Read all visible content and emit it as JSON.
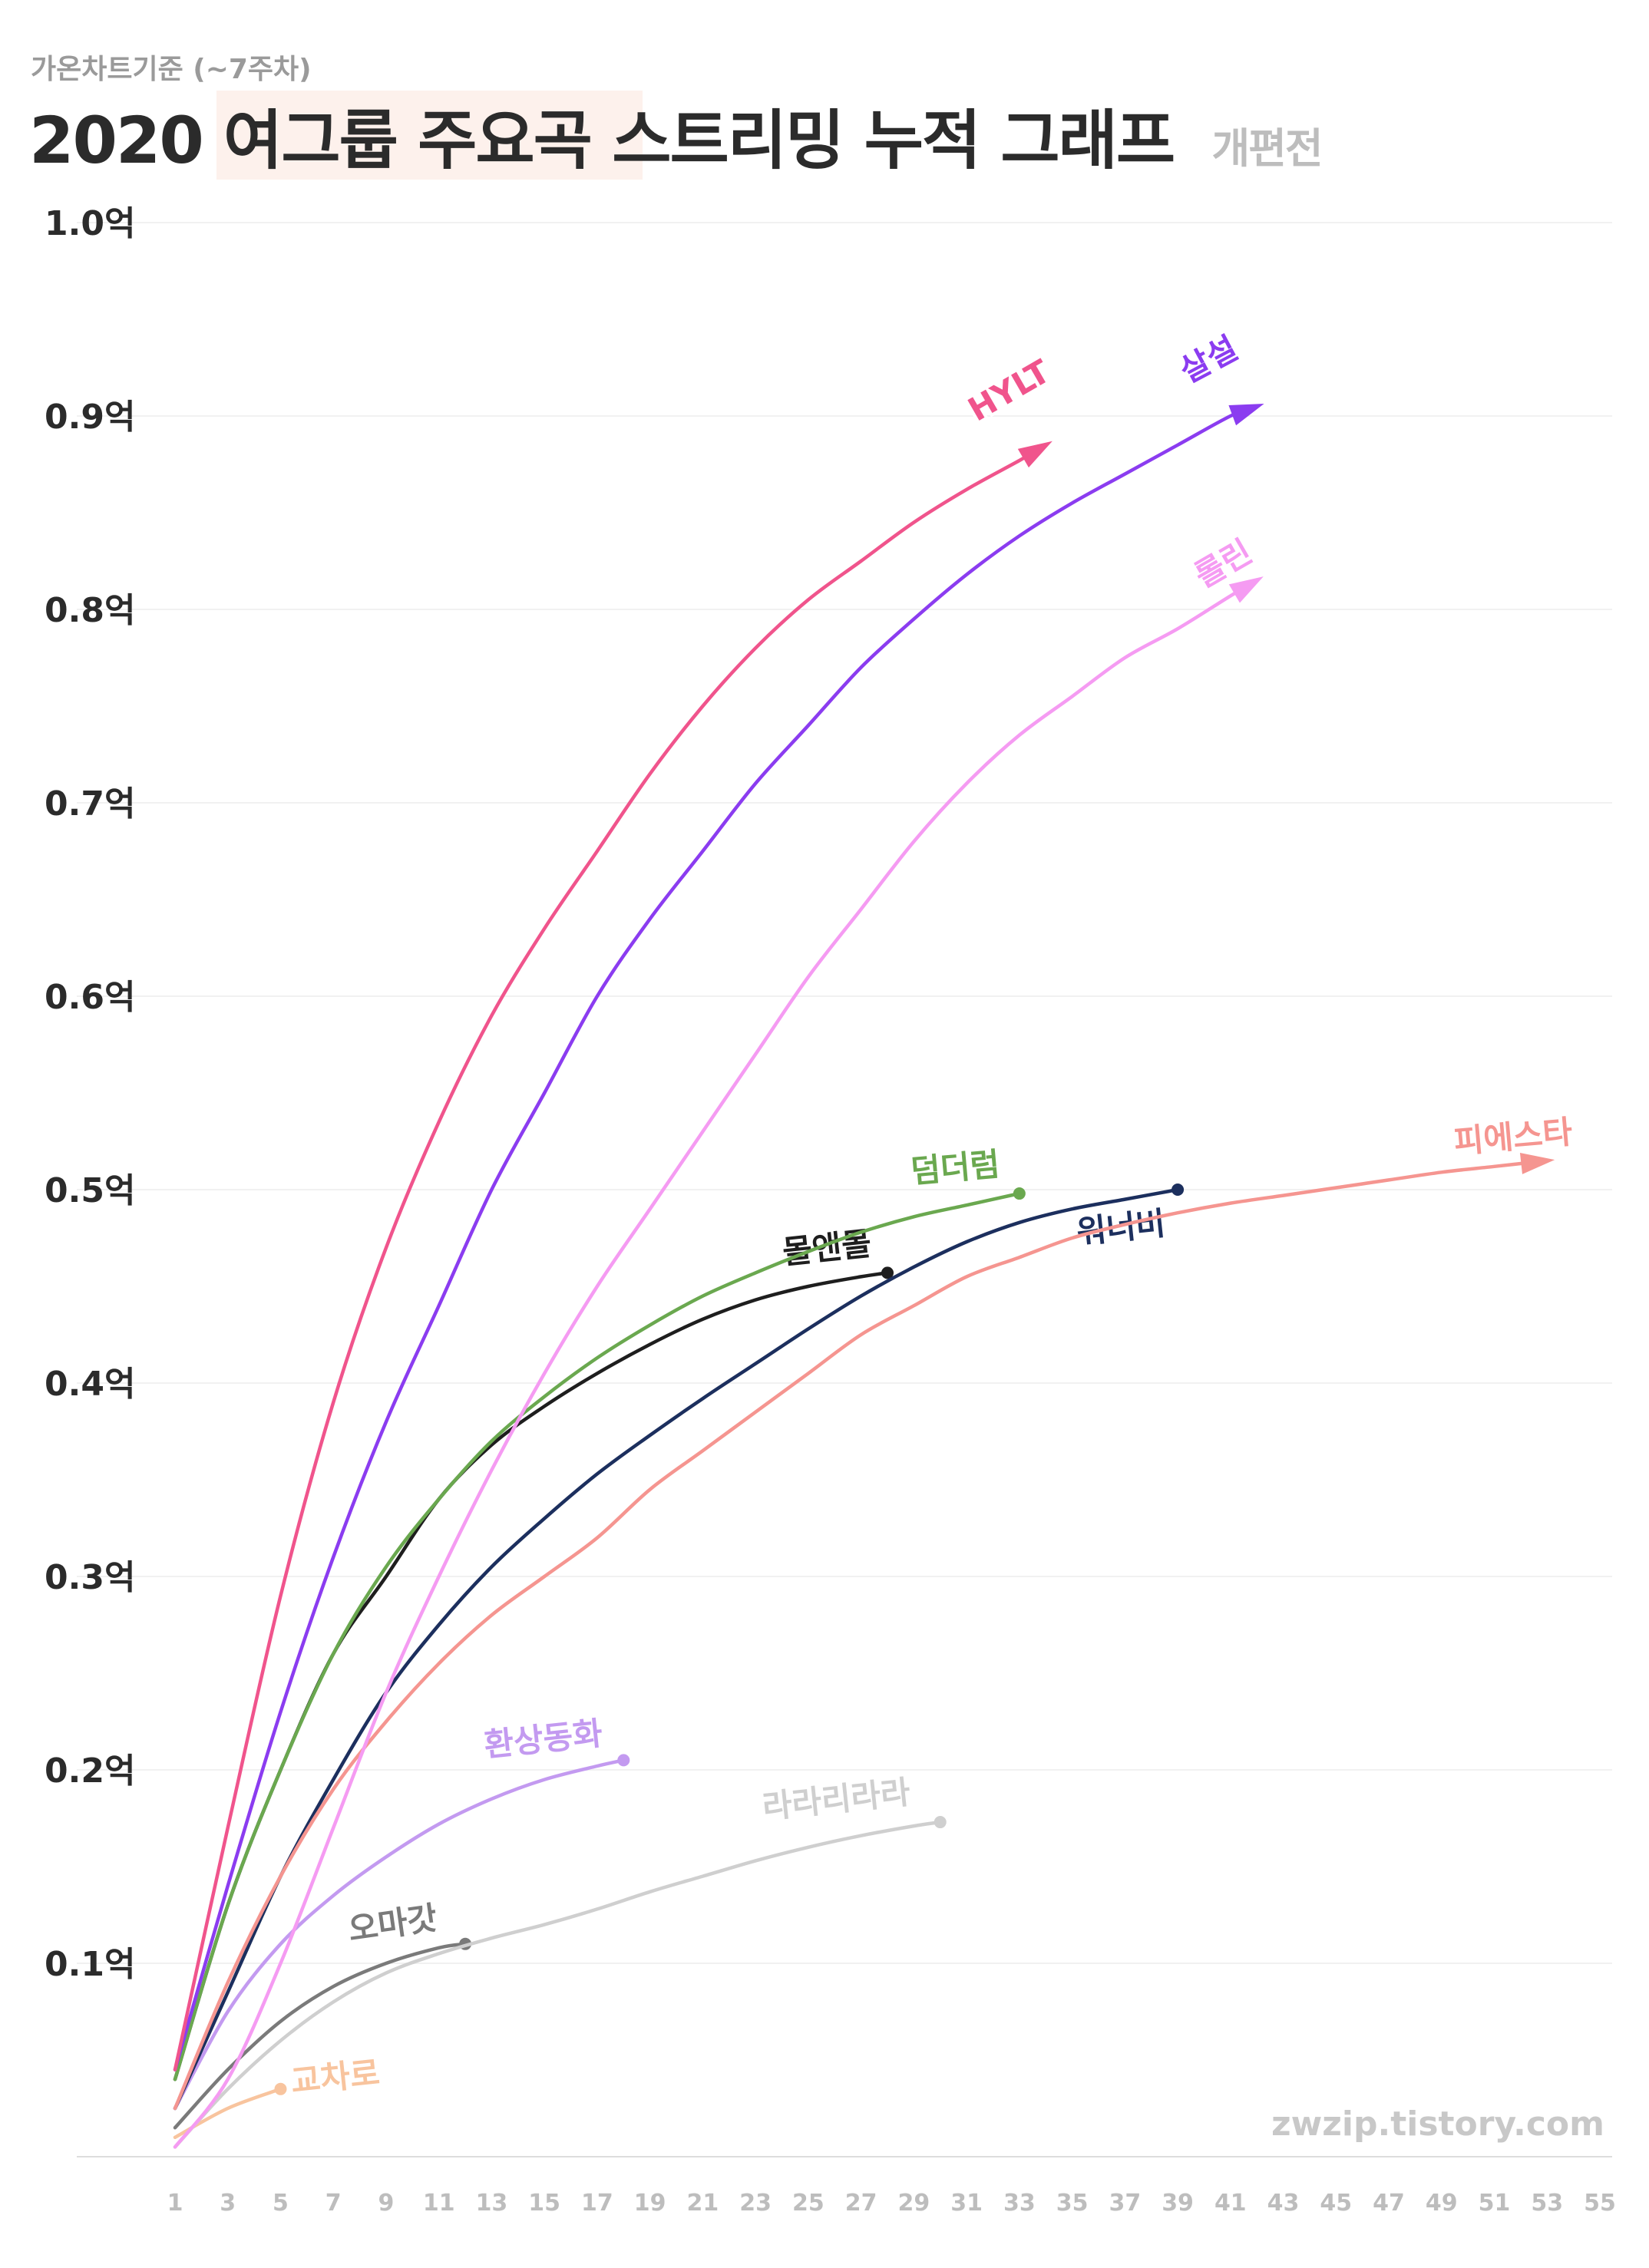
{
  "header": {
    "subtitle": "가온차트기준 (~7주차)",
    "title": "2020 여그룹 주요곡 스트리밍 누적 그래프",
    "title_note": "개편전",
    "highlight_color": "#fdf1ec"
  },
  "watermark": "zwzip.tistory.com",
  "chart_data": {
    "type": "line",
    "title": "2020 여그룹 주요곡 스트리밍 누적 그래프",
    "subtitle": "가온차트기준 (~7주차)",
    "xlabel": "",
    "ylabel": "",
    "xlim": [
      1,
      56
    ],
    "ylim": [
      0,
      1.0
    ],
    "grid": true,
    "x_ticks": [
      1,
      3,
      5,
      7,
      9,
      11,
      13,
      15,
      17,
      19,
      21,
      23,
      25,
      27,
      29,
      31,
      33,
      35,
      37,
      39,
      41,
      43,
      45,
      47,
      49,
      51,
      53,
      55
    ],
    "y_ticks": [
      {
        "value": 0.1,
        "label": "0.1억"
      },
      {
        "value": 0.2,
        "label": "0.2억"
      },
      {
        "value": 0.3,
        "label": "0.3억"
      },
      {
        "value": 0.4,
        "label": "0.4억"
      },
      {
        "value": 0.5,
        "label": "0.5억"
      },
      {
        "value": 0.6,
        "label": "0.6억"
      },
      {
        "value": 0.7,
        "label": "0.7억"
      },
      {
        "value": 0.8,
        "label": "0.8억"
      },
      {
        "value": 0.9,
        "label": "0.9억"
      },
      {
        "value": 1.0,
        "label": "1.0억"
      }
    ],
    "series": [
      {
        "name": "HYLT",
        "color": "#f0548c",
        "end": "arrow",
        "points": [
          [
            1,
            0.045
          ],
          [
            3,
            0.17
          ],
          [
            5,
            0.29
          ],
          [
            7,
            0.39
          ],
          [
            9,
            0.47
          ],
          [
            11,
            0.535
          ],
          [
            13,
            0.59
          ],
          [
            15,
            0.635
          ],
          [
            17,
            0.675
          ],
          [
            19,
            0.715
          ],
          [
            21,
            0.75
          ],
          [
            23,
            0.78
          ],
          [
            25,
            0.805
          ],
          [
            27,
            0.825
          ],
          [
            29,
            0.845
          ],
          [
            31,
            0.862
          ],
          [
            33,
            0.877
          ],
          [
            34,
            0.885
          ]
        ]
      },
      {
        "name": "살설",
        "color": "#8b3cf0",
        "end": "arrow",
        "points": [
          [
            1,
            0.045
          ],
          [
            3,
            0.14
          ],
          [
            5,
            0.23
          ],
          [
            7,
            0.31
          ],
          [
            9,
            0.38
          ],
          [
            11,
            0.44
          ],
          [
            13,
            0.5
          ],
          [
            15,
            0.55
          ],
          [
            17,
            0.6
          ],
          [
            19,
            0.64
          ],
          [
            21,
            0.675
          ],
          [
            23,
            0.71
          ],
          [
            25,
            0.74
          ],
          [
            27,
            0.77
          ],
          [
            29,
            0.795
          ],
          [
            31,
            0.818
          ],
          [
            33,
            0.838
          ],
          [
            35,
            0.855
          ],
          [
            37,
            0.87
          ],
          [
            39,
            0.885
          ],
          [
            41,
            0.9
          ],
          [
            42,
            0.905
          ]
        ]
      },
      {
        "name": "롤린",
        "color": "#f59bf2",
        "end": "arrow",
        "points": [
          [
            1,
            0.005
          ],
          [
            3,
            0.04
          ],
          [
            5,
            0.1
          ],
          [
            7,
            0.17
          ],
          [
            9,
            0.24
          ],
          [
            11,
            0.3
          ],
          [
            13,
            0.355
          ],
          [
            15,
            0.405
          ],
          [
            17,
            0.45
          ],
          [
            19,
            0.49
          ],
          [
            21,
            0.53
          ],
          [
            23,
            0.57
          ],
          [
            25,
            0.61
          ],
          [
            27,
            0.645
          ],
          [
            29,
            0.68
          ],
          [
            31,
            0.71
          ],
          [
            33,
            0.735
          ],
          [
            35,
            0.755
          ],
          [
            37,
            0.775
          ],
          [
            39,
            0.79
          ],
          [
            41,
            0.807
          ],
          [
            42,
            0.815
          ]
        ]
      },
      {
        "name": "피에스타",
        "color": "#f59590",
        "end": "arrow",
        "points": [
          [
            1,
            0.025
          ],
          [
            3,
            0.09
          ],
          [
            5,
            0.145
          ],
          [
            7,
            0.19
          ],
          [
            9,
            0.225
          ],
          [
            11,
            0.255
          ],
          [
            13,
            0.28
          ],
          [
            15,
            0.3
          ],
          [
            17,
            0.32
          ],
          [
            19,
            0.345
          ],
          [
            21,
            0.365
          ],
          [
            23,
            0.385
          ],
          [
            25,
            0.405
          ],
          [
            27,
            0.425
          ],
          [
            29,
            0.44
          ],
          [
            31,
            0.455
          ],
          [
            33,
            0.465
          ],
          [
            35,
            0.475
          ],
          [
            37,
            0.482
          ],
          [
            39,
            0.488
          ],
          [
            41,
            0.493
          ],
          [
            43,
            0.497
          ],
          [
            45,
            0.501
          ],
          [
            47,
            0.505
          ],
          [
            49,
            0.509
          ],
          [
            51,
            0.512
          ],
          [
            53,
            0.515
          ]
        ]
      },
      {
        "name": "덤더럼",
        "color": "#6aa84f",
        "end": "dot",
        "points": [
          [
            1,
            0.04
          ],
          [
            3,
            0.13
          ],
          [
            5,
            0.2
          ],
          [
            7,
            0.26
          ],
          [
            9,
            0.305
          ],
          [
            11,
            0.34
          ],
          [
            13,
            0.37
          ],
          [
            15,
            0.393
          ],
          [
            17,
            0.413
          ],
          [
            19,
            0.43
          ],
          [
            21,
            0.445
          ],
          [
            23,
            0.457
          ],
          [
            25,
            0.468
          ],
          [
            27,
            0.478
          ],
          [
            29,
            0.486
          ],
          [
            31,
            0.492
          ],
          [
            33,
            0.498
          ]
        ]
      },
      {
        "name": "워너비",
        "color": "#1c2f5e",
        "end": "dot",
        "points": [
          [
            1,
            0.025
          ],
          [
            3,
            0.085
          ],
          [
            5,
            0.145
          ],
          [
            7,
            0.195
          ],
          [
            9,
            0.24
          ],
          [
            11,
            0.275
          ],
          [
            13,
            0.305
          ],
          [
            15,
            0.33
          ],
          [
            17,
            0.353
          ],
          [
            19,
            0.373
          ],
          [
            21,
            0.392
          ],
          [
            23,
            0.41
          ],
          [
            25,
            0.428
          ],
          [
            27,
            0.445
          ],
          [
            29,
            0.46
          ],
          [
            31,
            0.473
          ],
          [
            33,
            0.483
          ],
          [
            35,
            0.49
          ],
          [
            37,
            0.495
          ],
          [
            39,
            0.5
          ]
        ]
      },
      {
        "name": "몰앤몰",
        "color": "#1e1e1e",
        "end": "dot",
        "points": [
          [
            1,
            0.04
          ],
          [
            3,
            0.13
          ],
          [
            5,
            0.2
          ],
          [
            7,
            0.26
          ],
          [
            9,
            0.3
          ],
          [
            11,
            0.34
          ],
          [
            13,
            0.368
          ],
          [
            15,
            0.388
          ],
          [
            17,
            0.405
          ],
          [
            19,
            0.42
          ],
          [
            21,
            0.433
          ],
          [
            23,
            0.443
          ],
          [
            25,
            0.45
          ],
          [
            27,
            0.455
          ],
          [
            28,
            0.457
          ]
        ]
      },
      {
        "name": "환상동화",
        "color": "#c39af0",
        "end": "dot",
        "points": [
          [
            1,
            0.025
          ],
          [
            3,
            0.075
          ],
          [
            5,
            0.11
          ],
          [
            7,
            0.135
          ],
          [
            9,
            0.155
          ],
          [
            11,
            0.172
          ],
          [
            13,
            0.185
          ],
          [
            15,
            0.195
          ],
          [
            17,
            0.202
          ],
          [
            18,
            0.205
          ]
        ]
      },
      {
        "name": "라라리라라",
        "color": "#cfcfcf",
        "end": "dot",
        "points": [
          [
            1,
            0.005
          ],
          [
            3,
            0.035
          ],
          [
            5,
            0.06
          ],
          [
            7,
            0.08
          ],
          [
            9,
            0.095
          ],
          [
            11,
            0.105
          ],
          [
            13,
            0.113
          ],
          [
            15,
            0.12
          ],
          [
            17,
            0.128
          ],
          [
            19,
            0.137
          ],
          [
            21,
            0.145
          ],
          [
            23,
            0.153
          ],
          [
            25,
            0.16
          ],
          [
            27,
            0.166
          ],
          [
            29,
            0.171
          ],
          [
            30,
            0.173
          ]
        ]
      },
      {
        "name": "오마갓",
        "color": "#7a7a7a",
        "end": "dot",
        "points": [
          [
            1,
            0.015
          ],
          [
            3,
            0.045
          ],
          [
            5,
            0.07
          ],
          [
            7,
            0.088
          ],
          [
            9,
            0.1
          ],
          [
            11,
            0.108
          ],
          [
            12,
            0.11
          ]
        ]
      },
      {
        "name": "교차로",
        "color": "#f8c49e",
        "end": "dot",
        "points": [
          [
            1,
            0.01
          ],
          [
            3,
            0.025
          ],
          [
            5,
            0.035
          ]
        ]
      }
    ]
  }
}
